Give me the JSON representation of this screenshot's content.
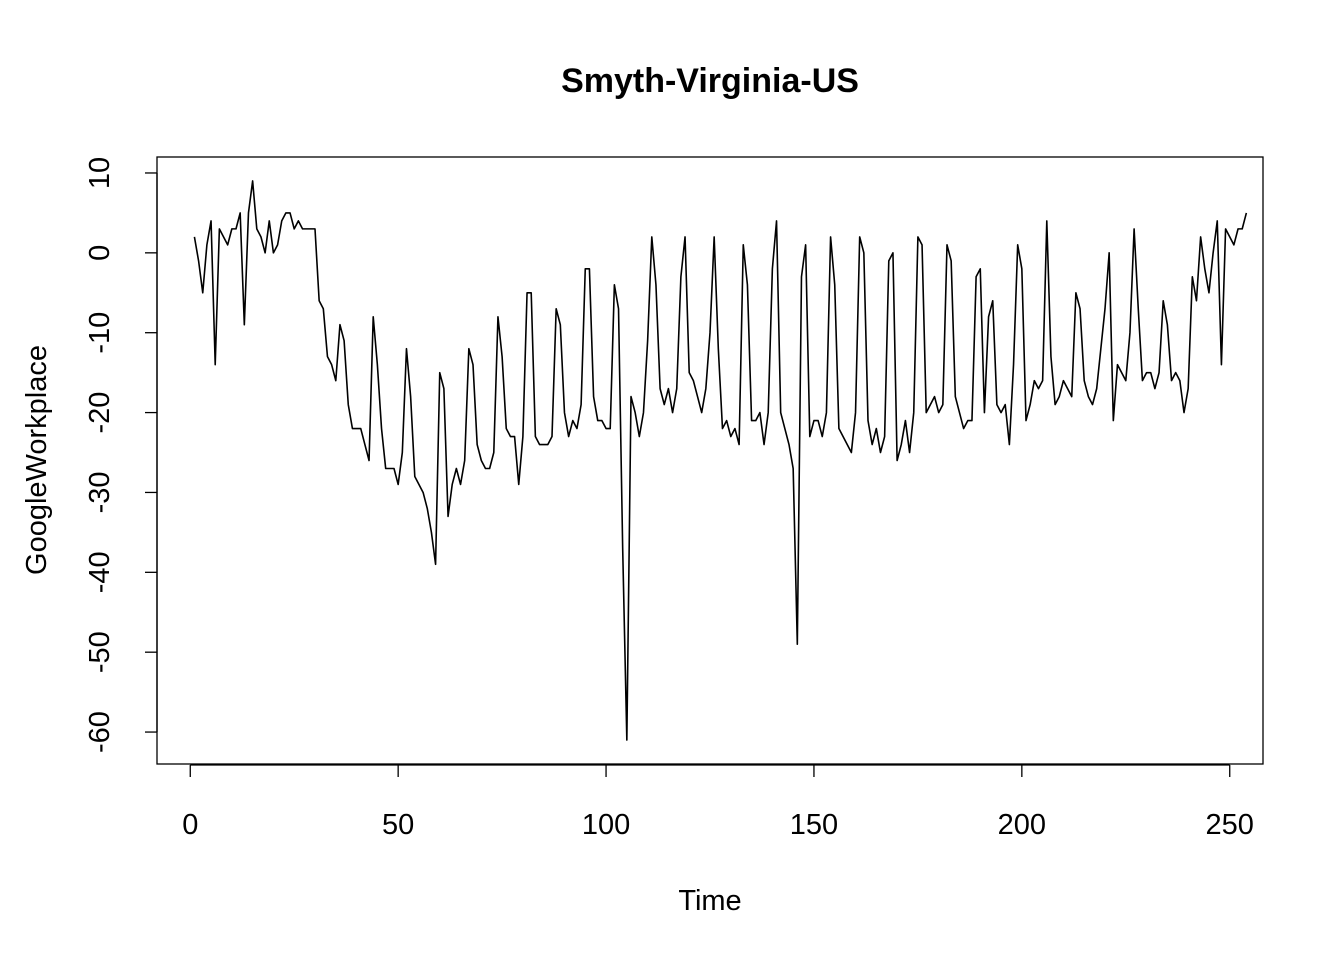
{
  "chart_data": {
    "type": "line",
    "title": "Smyth-Virginia-US",
    "xlabel": "Time",
    "ylabel": "GoogleWorkplace",
    "xlim": [
      -8,
      258
    ],
    "ylim": [
      -64,
      12
    ],
    "x_ticks": [
      0,
      50,
      100,
      150,
      200,
      250
    ],
    "y_ticks": [
      -60,
      -50,
      -40,
      -30,
      -20,
      -10,
      0,
      10
    ],
    "x_tick_labels": [
      "0",
      "50",
      "100",
      "150",
      "200",
      "250"
    ],
    "y_tick_labels": [
      "-60",
      "-50",
      "-40",
      "-30",
      "-20",
      "-10",
      "0",
      "10"
    ],
    "grid": false,
    "x_start": 1,
    "series": [
      {
        "values": [
          2,
          -1,
          -5,
          1,
          4,
          -14,
          3,
          2,
          1,
          3,
          3,
          5,
          -9,
          5,
          9,
          3,
          2,
          0,
          4,
          0,
          1,
          4,
          5,
          5,
          3,
          4,
          3,
          3,
          3,
          3,
          -6,
          -7,
          -13,
          -14,
          -16,
          -9,
          -11,
          -19,
          -22,
          -22,
          -22,
          -24,
          -26,
          -8,
          -14,
          -22,
          -27,
          -27,
          -27,
          -29,
          -25,
          -12,
          -18,
          -28,
          -29,
          -30,
          -32,
          -35,
          -39,
          -15,
          -17,
          -33,
          -29,
          -27,
          -29,
          -26,
          -12,
          -14,
          -24,
          -26,
          -27,
          -27,
          -25,
          -8,
          -13,
          -22,
          -23,
          -23,
          -29,
          -23,
          -5,
          -5,
          -23,
          -24,
          -24,
          -24,
          -23,
          -7,
          -9,
          -20,
          -23,
          -21,
          -22,
          -19,
          -2,
          -2,
          -18,
          -21,
          -21,
          -22,
          -22,
          -4,
          -7,
          -37,
          -61,
          -18,
          -20,
          -23,
          -20,
          -11,
          2,
          -4,
          -17,
          -19,
          -17,
          -20,
          -17,
          -3,
          2,
          -15,
          -16,
          -18,
          -20,
          -17,
          -10,
          2,
          -12,
          -22,
          -21,
          -23,
          -22,
          -24,
          1,
          -4,
          -21,
          -21,
          -20,
          -24,
          -20,
          -2,
          4,
          -20,
          -22,
          -24,
          -27,
          -49,
          -3,
          1,
          -23,
          -21,
          -21,
          -23,
          -20,
          2,
          -4,
          -22,
          -23,
          -24,
          -25,
          -20,
          2,
          0,
          -21,
          -24,
          -22,
          -25,
          -23,
          -1,
          0,
          -26,
          -24,
          -21,
          -25,
          -20,
          2,
          1,
          -20,
          -19,
          -18,
          -20,
          -19,
          1,
          -1,
          -18,
          -20,
          -22,
          -21,
          -21,
          -3,
          -2,
          -20,
          -8,
          -6,
          -19,
          -20,
          -19,
          -24,
          -14,
          1,
          -2,
          -21,
          -19,
          -16,
          -17,
          -16,
          4,
          -13,
          -19,
          -18,
          -16,
          -17,
          -18,
          -5,
          -7,
          -16,
          -18,
          -19,
          -17,
          -12,
          -7,
          0,
          -21,
          -14,
          -15,
          -16,
          -10,
          3,
          -7,
          -16,
          -15,
          -15,
          -17,
          -15,
          -6,
          -9,
          -16,
          -15,
          -16,
          -20,
          -17,
          -3,
          -6,
          2,
          -2,
          -5,
          0,
          4,
          -14,
          3,
          2,
          1,
          3,
          3,
          5
        ]
      }
    ]
  }
}
